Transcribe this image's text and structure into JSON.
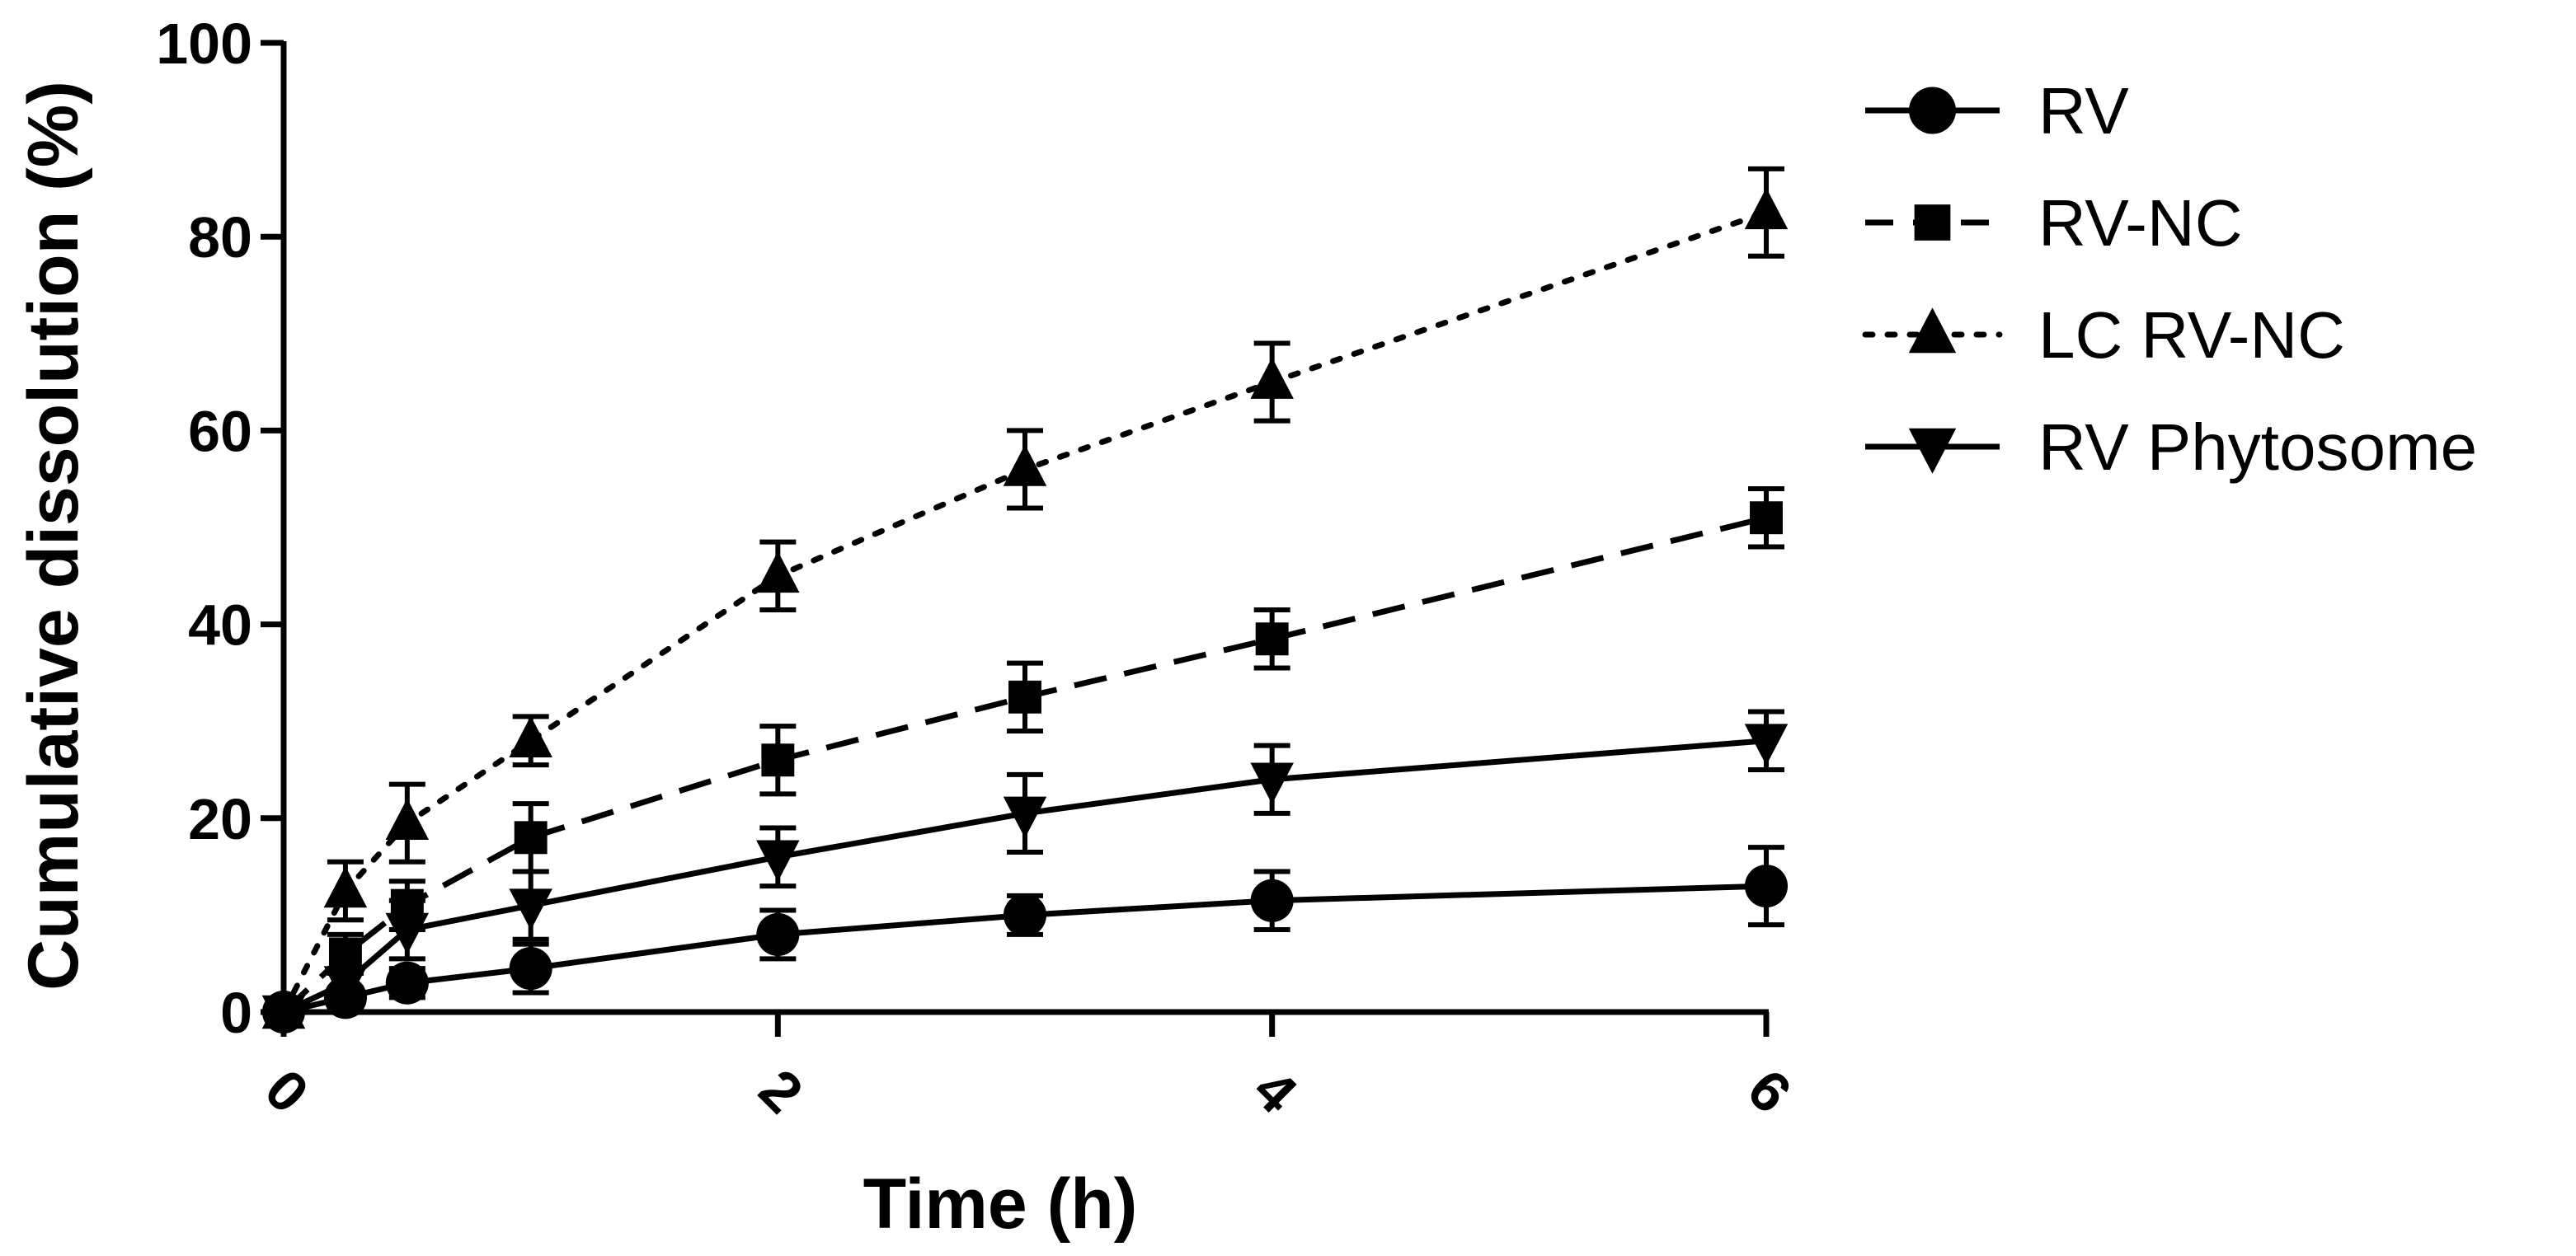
{
  "chart_data": {
    "type": "line",
    "title": "",
    "xlabel": "Time (h)",
    "ylabel": "Cumulative dissolution (%)",
    "xlim": [
      0,
      6
    ],
    "ylim": [
      0,
      100
    ],
    "xticks": [
      "0",
      "2",
      "4",
      "6"
    ],
    "yticks": [
      "0",
      "20",
      "40",
      "60",
      "80",
      "100"
    ],
    "grid": false,
    "legend_position": "top-right",
    "x": [
      0,
      0.25,
      0.5,
      1,
      2,
      3,
      4,
      6
    ],
    "series": [
      {
        "name": "RV",
        "marker": "circle",
        "line_style": "solid",
        "values": [
          0,
          1.5,
          3,
          4.5,
          8,
          10,
          11.5,
          13
        ],
        "errors": [
          0.5,
          1,
          1.5,
          2.5,
          2.5,
          2,
          3,
          4
        ]
      },
      {
        "name": "RV-NC",
        "marker": "square",
        "line_style": "dashed",
        "values": [
          0,
          6,
          11,
          18,
          26,
          32.5,
          38.5,
          51
        ],
        "errors": [
          0.5,
          2,
          2.5,
          3.5,
          3.5,
          3.5,
          3,
          3
        ]
      },
      {
        "name": "LC RV-NC",
        "marker": "triangle-up",
        "line_style": "dotted",
        "values": [
          0,
          12.5,
          19.5,
          28,
          45,
          56,
          65,
          82.5
        ],
        "errors": [
          0.5,
          3,
          4,
          2.5,
          3.5,
          4,
          4,
          4.5
        ]
      },
      {
        "name": "RV Phytosome",
        "marker": "triangle-down",
        "line_style": "solid",
        "values": [
          0,
          3,
          8.5,
          11,
          16,
          20.5,
          24,
          28
        ],
        "errors": [
          0.5,
          1.5,
          3,
          3.5,
          3,
          4,
          3.5,
          3
        ]
      }
    ]
  }
}
